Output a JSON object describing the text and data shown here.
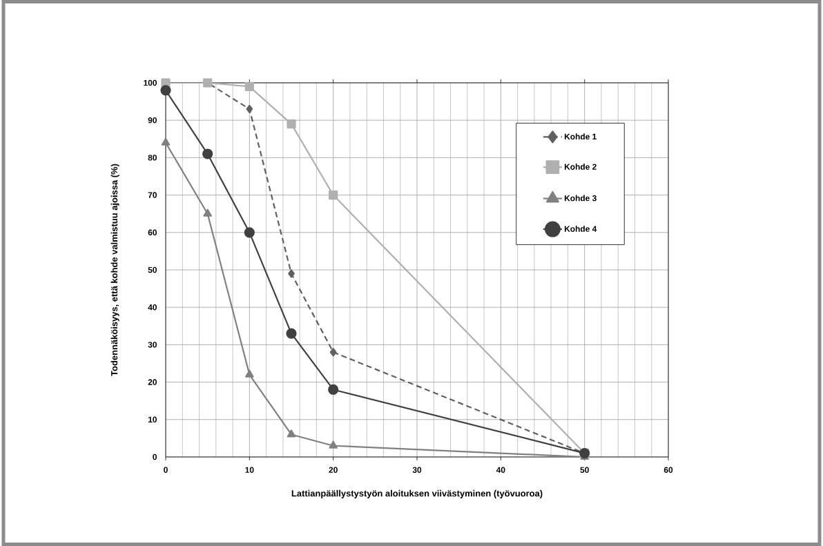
{
  "chart_data": {
    "type": "line",
    "xlabel": "Lattianpäällystystyön aloituksen viivästyminen (työvuoroa)",
    "ylabel": "Todennäköisyys, että kohde valmistuu ajoissa (%)",
    "x": [
      0,
      5,
      10,
      15,
      20,
      50
    ],
    "series": [
      {
        "name": "Kohde 1",
        "color": "#606060",
        "marker": "diamond",
        "line_style": "dashed",
        "values": [
          100,
          100,
          93,
          49,
          28,
          1
        ]
      },
      {
        "name": "Kohde 2",
        "color": "#b0b0b0",
        "marker": "square",
        "line_style": "solid",
        "values": [
          100,
          100,
          99,
          89,
          70,
          1
        ]
      },
      {
        "name": "Kohde 3",
        "color": "#808080",
        "marker": "triangle",
        "line_style": "solid",
        "values": [
          84,
          65,
          22,
          6,
          3,
          0
        ]
      },
      {
        "name": "Kohde 4",
        "color": "#404040",
        "marker": "circle",
        "line_style": "solid",
        "values": [
          98,
          81,
          60,
          33,
          18,
          1
        ]
      }
    ],
    "xlim": [
      0,
      60
    ],
    "xticks": [
      0,
      10,
      20,
      30,
      40,
      50,
      60
    ],
    "ylim": [
      0,
      100
    ],
    "yticks": [
      0,
      10,
      20,
      30,
      40,
      50,
      60,
      70,
      80,
      90,
      100
    ],
    "grid": true,
    "legend": "top right"
  }
}
